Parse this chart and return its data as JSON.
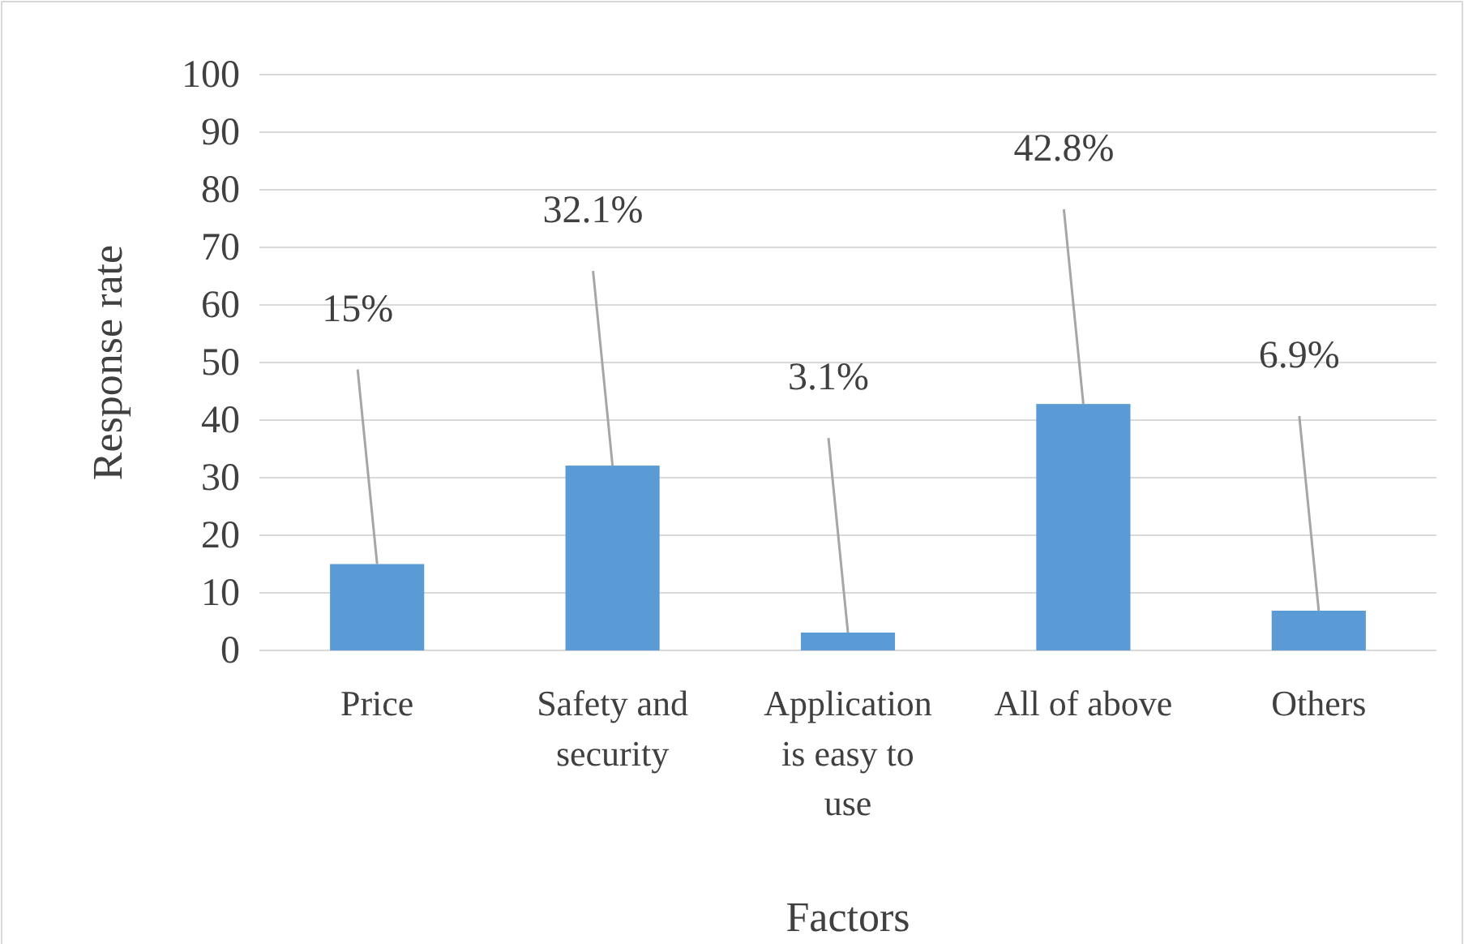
{
  "chart_data": {
    "type": "bar",
    "xlabel": "Factors",
    "ylabel": "Response rate",
    "categories": [
      "Price",
      "Safety and security",
      "Application is easy to use",
      "All of above",
      "Others"
    ],
    "values": [
      15,
      32.1,
      3.1,
      42.8,
      6.9
    ],
    "color": "#5b9bd5",
    "value_labels": [
      "15%",
      "32.1%",
      "3.1%",
      "42.8%",
      "6.9%"
    ],
    "ylim": [
      0,
      100
    ],
    "yticks": [
      0,
      10,
      20,
      30,
      40,
      50,
      60,
      70,
      80,
      90,
      100
    ],
    "grid": "y"
  }
}
